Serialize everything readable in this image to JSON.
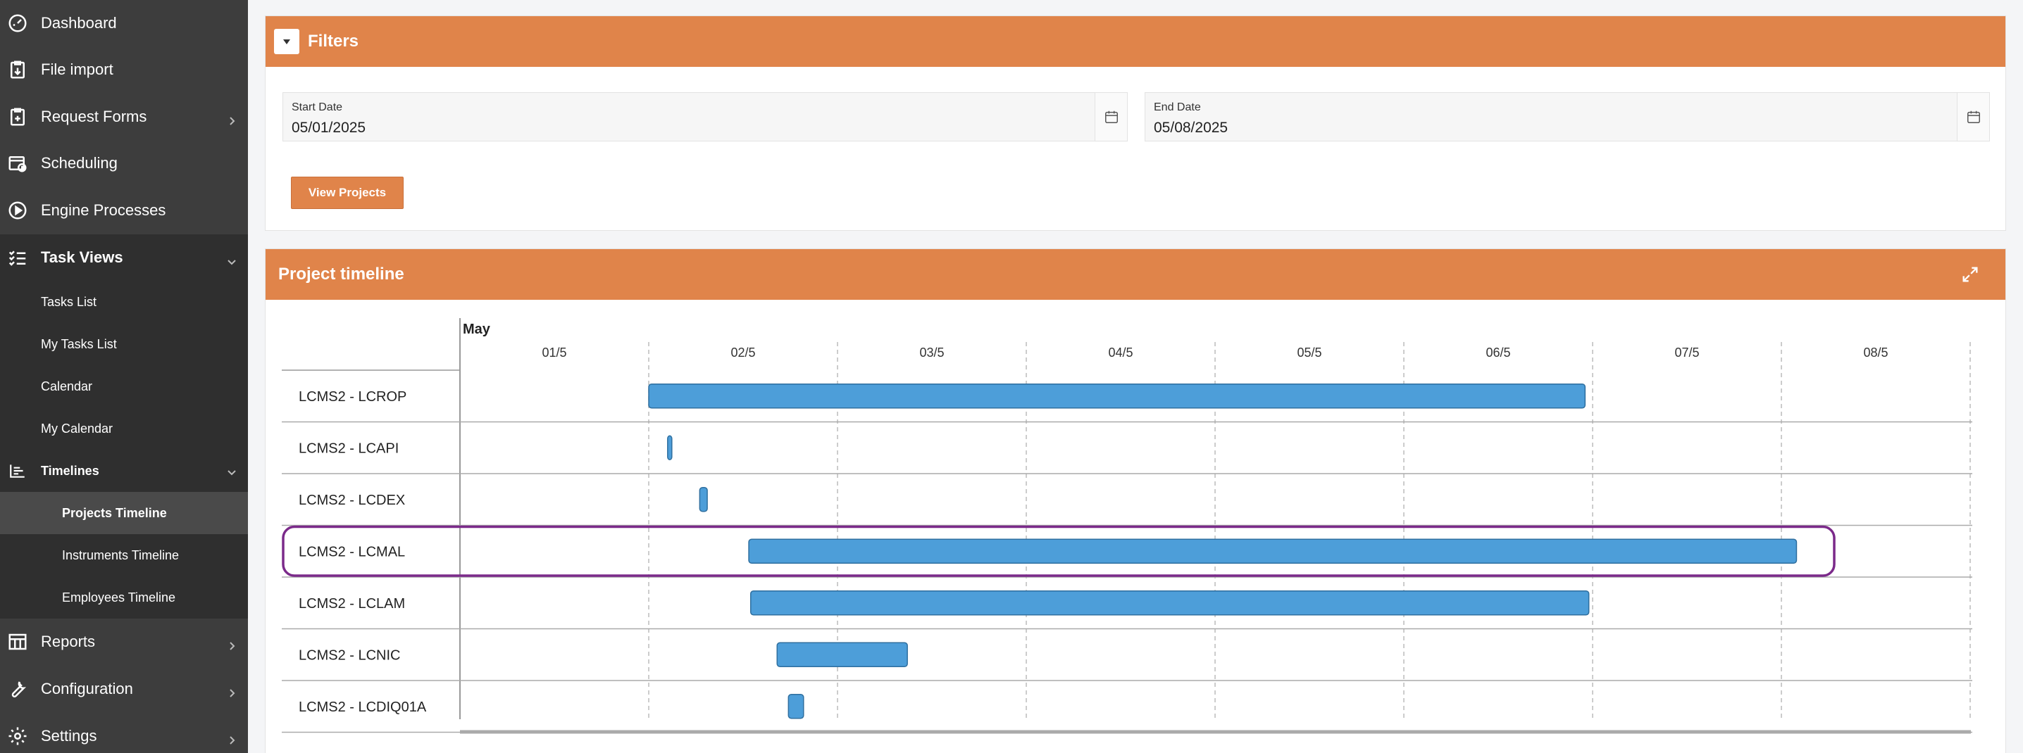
{
  "sidebar": {
    "items": [
      {
        "label": "Dashboard",
        "icon": "dashboard-icon"
      },
      {
        "label": "File import",
        "icon": "file-import-icon"
      },
      {
        "label": "Request Forms",
        "icon": "request-forms-icon"
      },
      {
        "label": "Scheduling",
        "icon": "scheduling-icon"
      },
      {
        "label": "Engine Processes",
        "icon": "play-circle-icon"
      },
      {
        "label": "Task Views",
        "icon": "task-list-icon"
      },
      {
        "label": "Reports",
        "icon": "reports-icon"
      },
      {
        "label": "Configuration",
        "icon": "wrench-icon"
      },
      {
        "label": "Settings",
        "icon": "gear-icon"
      }
    ],
    "task_views": [
      "Tasks List",
      "My Tasks List",
      "Calendar",
      "My Calendar"
    ],
    "timelines_label": "Timelines",
    "timelines": [
      "Projects Timeline",
      "Instruments Timeline",
      "Employees Timeline"
    ]
  },
  "filters": {
    "title": "Filters",
    "start_label": "Start Date",
    "start_value": "05/01/2025",
    "end_label": "End Date",
    "end_value": "05/08/2025",
    "view_button": "View Projects"
  },
  "timeline": {
    "title": "Project timeline",
    "month": "May",
    "days": [
      "01/5",
      "02/5",
      "03/5",
      "04/5",
      "05/5",
      "06/5",
      "07/5",
      "08/5"
    ],
    "rows": [
      {
        "name": "LCMS2 - LCROP",
        "start": 1.0,
        "end": 5.96
      },
      {
        "name": "LCMS2 - LCAPI",
        "start": 1.1,
        "end": 1.12
      },
      {
        "name": "LCMS2 - LCDEX",
        "start": 1.27,
        "end": 1.31
      },
      {
        "name": "LCMS2 - LCMAL",
        "start": 1.53,
        "end": 7.08,
        "highlighted": true
      },
      {
        "name": "LCMS2 - LCLAM",
        "start": 1.54,
        "end": 5.98
      },
      {
        "name": "LCMS2 - LCNIC",
        "start": 1.68,
        "end": 2.37
      },
      {
        "name": "LCMS2 - LCDIQ01A",
        "start": 1.74,
        "end": 1.82
      }
    ],
    "colors": {
      "bar": "#4d9ed9",
      "bar_border": "#2f6f9f",
      "highlight": "#7b2a8a",
      "accent": "#e0844a"
    }
  }
}
